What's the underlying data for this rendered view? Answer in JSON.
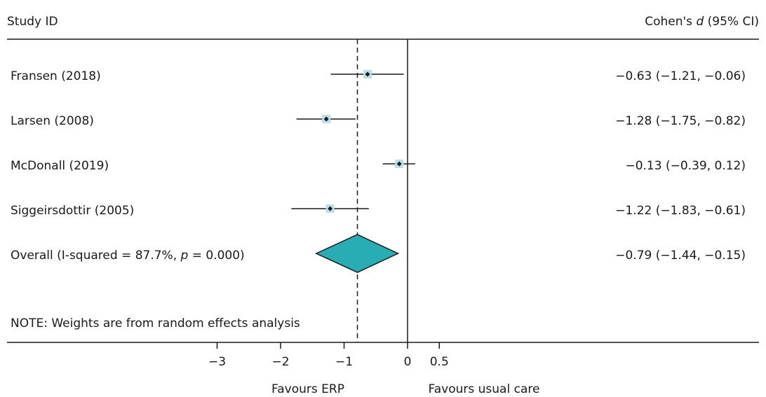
{
  "chart_data": {
    "type": "forest",
    "headers": {
      "study_col": "Study ID",
      "effect_col_prefix": "Cohen's ",
      "effect_col_symbol": "d",
      "effect_col_suffix": " (95% CI)"
    },
    "studies": [
      {
        "label": "Fransen (2018)",
        "estimate": -0.63,
        "ci": [
          -1.21,
          -0.06
        ],
        "ci_text": "−0.63 (−1.21, −0.06)"
      },
      {
        "label": "Larsen (2008)",
        "estimate": -1.28,
        "ci": [
          -1.75,
          -0.82
        ],
        "ci_text": "−1.28 (−1.75, −0.82)"
      },
      {
        "label": "McDonall (2019)",
        "estimate": -0.13,
        "ci": [
          -0.39,
          0.12
        ],
        "ci_text": "−0.13 (−0.39, 0.12)"
      },
      {
        "label": "Siggeirsdottir  (2005)",
        "estimate": -1.22,
        "ci": [
          -1.83,
          -0.61
        ],
        "ci_text": "−1.22 (−1.83, −0.61)"
      }
    ],
    "overall": {
      "label_prefix": "Overall  (I-squared = 87.7%, ",
      "label_p": "p",
      "label_suffix": " = 0.000)",
      "estimate": -0.79,
      "ci": [
        -1.44,
        -0.15
      ],
      "ci_text": "−0.79 (−1.44, −0.15)"
    },
    "note": "NOTE: Weights are from random effects analysis",
    "x_ticks": [
      {
        "value": -3,
        "label": "−3"
      },
      {
        "value": -2,
        "label": "−2"
      },
      {
        "value": -1,
        "label": "−1"
      },
      {
        "value": 0,
        "label": "0"
      },
      {
        "value": 0.5,
        "label": "0.5"
      }
    ],
    "favours_left": "Favours ERP",
    "favours_right": "Favours usual care",
    "colors": {
      "diamond_fill": "#27adb3",
      "marker_box": "#b9dfe8",
      "marker_point": "#1a1a1a",
      "line": "#1a1a1a"
    }
  }
}
